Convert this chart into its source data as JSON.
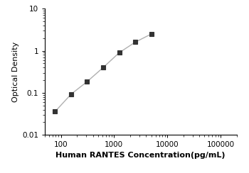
{
  "x_data": [
    78,
    156,
    312,
    625,
    1250,
    2500,
    5000
  ],
  "y_data": [
    0.036,
    0.093,
    0.185,
    0.4,
    0.9,
    1.6,
    2.5
  ],
  "xlabel": "Human RANTES Concentration(pg/mL)",
  "ylabel": "Optical Density",
  "xlim": [
    50,
    200000
  ],
  "ylim": [
    0.01,
    10
  ],
  "line_color": "#b0b0b0",
  "marker_color": "#333333",
  "marker": "s",
  "marker_size": 4,
  "line_width": 1.0,
  "x_ticks": [
    100,
    1000,
    10000,
    100000
  ],
  "x_tick_labels": [
    "100",
    "1000",
    "10000",
    "100000"
  ],
  "y_ticks": [
    0.01,
    0.1,
    1,
    10
  ],
  "y_tick_labels": [
    "0.01",
    "0.1",
    "1",
    "10"
  ],
  "font_size": 7.5,
  "label_font_size": 8,
  "background_color": "#ffffff"
}
